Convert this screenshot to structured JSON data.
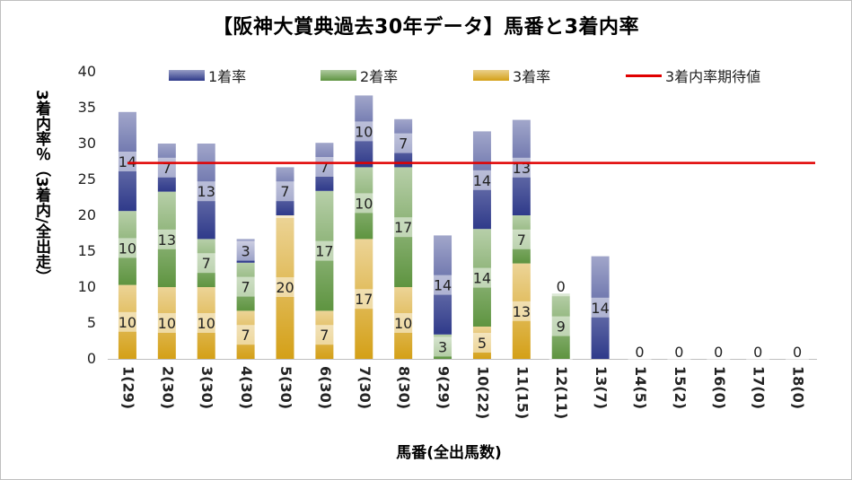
{
  "chart_data": {
    "type": "bar",
    "stacked": true,
    "title": "【阪神大賞典過去30年データ】馬番と3着内率",
    "xlabel": "馬番(全出馬数)",
    "ylabel": "3着内率％（3着内/全出走）",
    "ylim": [
      0,
      40
    ],
    "yticks": [
      0,
      5,
      10,
      15,
      20,
      25,
      30,
      35,
      40
    ],
    "grid": false,
    "legend_position": "top",
    "categories": [
      "1(29)",
      "2(30)",
      "3(30)",
      "4(30)",
      "5(30)",
      "6(30)",
      "7(30)",
      "8(30)",
      "9(29)",
      "10(22)",
      "11(15)",
      "12(11)",
      "13(7)",
      "14(5)",
      "15(2)",
      "16(0)",
      "17(0)",
      "18(0)"
    ],
    "series": [
      {
        "name": "3着率",
        "color": "#d4a017",
        "values": [
          10.3,
          10,
          10,
          6.7,
          20,
          6.7,
          16.7,
          10,
          0,
          4.5,
          13.3,
          0,
          0,
          0,
          0,
          0,
          0,
          0
        ],
        "labels": [
          "10",
          "10",
          "10",
          "7",
          "20",
          "7",
          "17",
          "10",
          "",
          "5",
          "13",
          "0",
          "",
          "",
          "",
          "",
          "",
          ""
        ]
      },
      {
        "name": "2着率",
        "color": "#5e9440",
        "values": [
          10.3,
          13.3,
          6.7,
          6.7,
          0,
          16.7,
          10,
          16.7,
          3.4,
          13.6,
          6.7,
          9.1,
          0,
          0,
          0,
          0,
          0,
          0
        ],
        "labels": [
          "10",
          "13",
          "7",
          "7",
          "0",
          "17",
          "10",
          "17",
          "3",
          "14",
          "7",
          "9",
          "",
          "",
          "",
          "",
          "",
          ""
        ]
      },
      {
        "name": "1着率",
        "color": "#2f3a8a",
        "values": [
          13.8,
          6.7,
          13.3,
          3.3,
          6.7,
          6.7,
          10,
          6.7,
          13.8,
          13.6,
          13.3,
          0,
          14.3,
          0,
          0,
          0,
          0,
          0
        ],
        "labels": [
          "14",
          "7",
          "13",
          "3",
          "7",
          "7",
          "10",
          "7",
          "14",
          "14",
          "13",
          "0",
          "14",
          "0",
          "0",
          "0",
          "0",
          "0"
        ]
      }
    ],
    "line": {
      "name": "3着内率期待値",
      "value": 27.3,
      "color": "#e00000"
    }
  }
}
